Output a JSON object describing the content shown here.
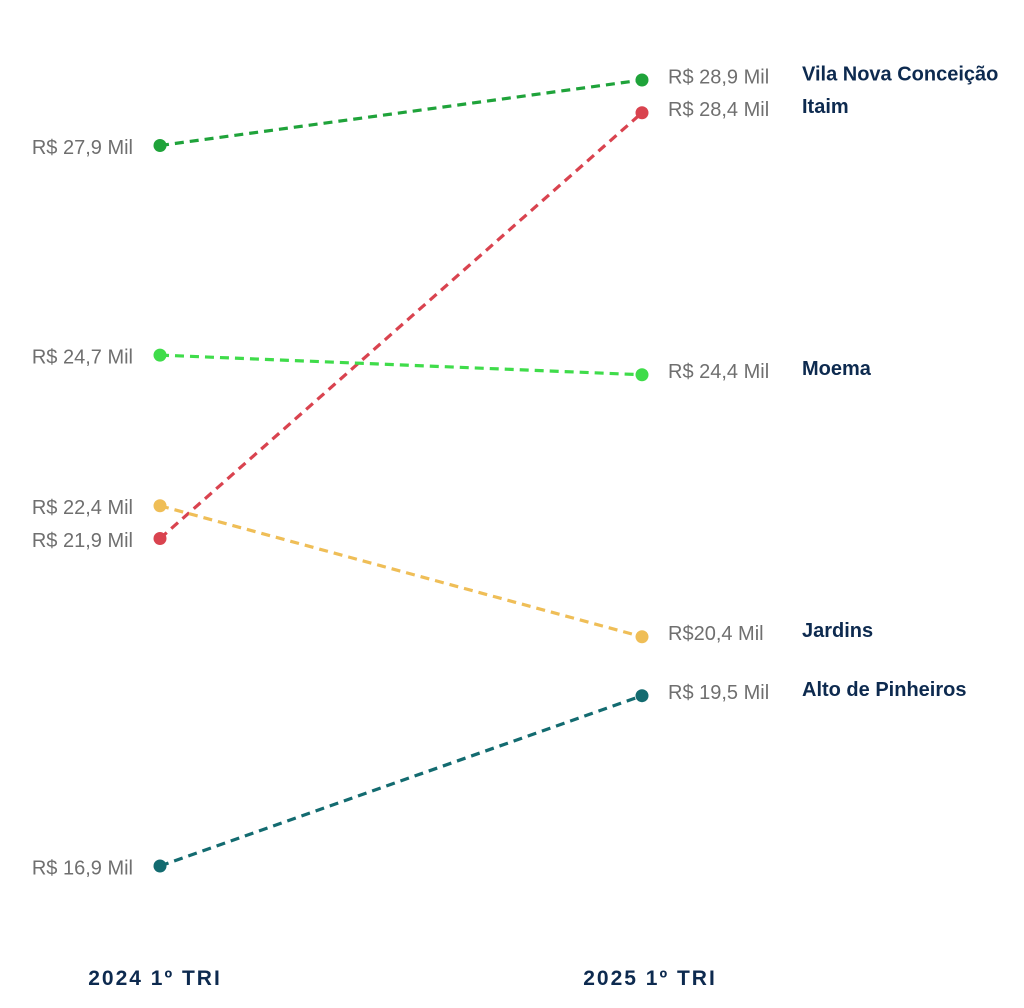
{
  "chart_data": {
    "type": "line",
    "categories": [
      "2024 1º TRI",
      "2025 1º TRI"
    ],
    "y_unit": "R$ Mil",
    "ylim": [
      16.0,
      29.5
    ],
    "grid": false,
    "legend": "right",
    "series": [
      {
        "name": "Vila Nova Conceição",
        "values": [
          27.9,
          28.9
        ],
        "labels": [
          "R$ 27,9 Mil",
          "R$ 28,9 Mil"
        ],
        "color": "#1fa33a"
      },
      {
        "name": "Itaim",
        "values": [
          21.9,
          28.4
        ],
        "labels": [
          "R$ 21,9 Mil",
          "R$ 28,4 Mil"
        ],
        "color": "#d9434f"
      },
      {
        "name": "Moema",
        "values": [
          24.7,
          24.4
        ],
        "labels": [
          "R$ 24,7 Mil",
          "R$ 24,4 Mil"
        ],
        "color": "#3fdc4a"
      },
      {
        "name": "Jardins",
        "values": [
          22.4,
          20.4
        ],
        "labels": [
          "R$ 22,4 Mil",
          "R$20,4 Mil"
        ],
        "color": "#efbe57"
      },
      {
        "name": "Alto de Pinheiros",
        "values": [
          16.9,
          19.5
        ],
        "labels": [
          "R$ 16,9 Mil",
          "R$ 19,5 Mil"
        ],
        "color": "#136b70"
      }
    ]
  }
}
